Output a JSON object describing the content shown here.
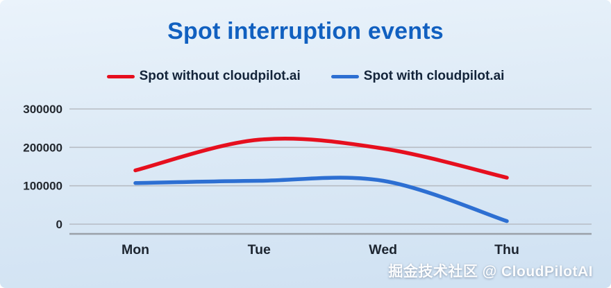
{
  "watermark": {
    "text": "掘金技术社区 @ CloudPilotAI"
  },
  "chart_data": {
    "type": "line",
    "title": "Spot interruption events",
    "xlabel": "",
    "ylabel": "",
    "categories": [
      "Mon",
      "Tue",
      "Wed",
      "Thu"
    ],
    "series": [
      {
        "name": "Spot without cloudpilot.ai",
        "color": "#e60f1e",
        "values": [
          140000,
          220000,
          197000,
          121000
        ]
      },
      {
        "name": "Spot with cloudpilot.ai",
        "color": "#2d6fd2",
        "values": [
          107000,
          113000,
          113000,
          8000
        ]
      }
    ],
    "ylim": [
      0,
      300000
    ],
    "yticks": [
      0,
      100000,
      200000,
      300000
    ],
    "grid": true,
    "legend_position": "top",
    "smooth": true
  }
}
